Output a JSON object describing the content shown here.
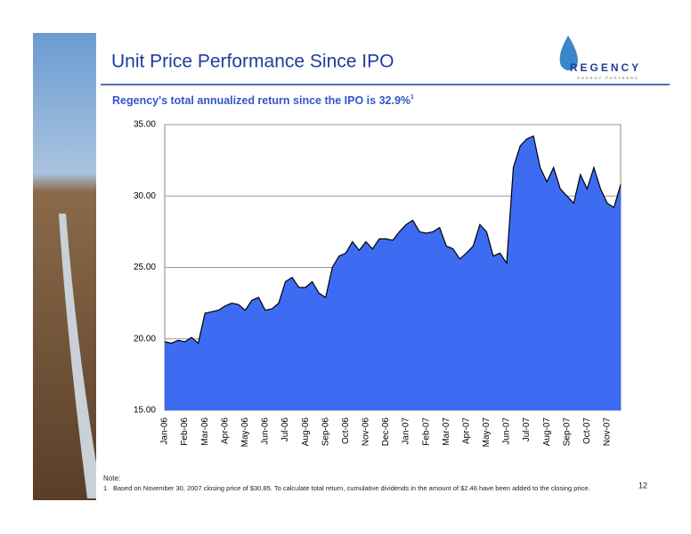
{
  "header": {
    "title": "Unit Price Performance Since IPO",
    "logo": "REGENCY",
    "logo_sub": "ENERGY PARTNERS"
  },
  "chart_data": {
    "type": "area",
    "subtitle": "Regency's total annualized return since the IPO is 32.9%",
    "subtitle_note": "1",
    "color": "#3d6cf2",
    "grid": true,
    "ylim": [
      15,
      35
    ],
    "yticks": [
      {
        "value": 15,
        "label": "15.00"
      },
      {
        "value": 20,
        "label": "20.00"
      },
      {
        "value": 25,
        "label": "25.00"
      },
      {
        "value": 30,
        "label": "30.00"
      },
      {
        "value": 35,
        "label": "35.00"
      }
    ],
    "categories": [
      "Jan-06",
      null,
      null,
      "Feb-06",
      null,
      null,
      "Mar-06",
      null,
      null,
      "Apr-06",
      null,
      null,
      "May-06",
      null,
      null,
      "Jun-06",
      null,
      null,
      "Jul-06",
      null,
      null,
      "Aug-06",
      null,
      null,
      "Sep-06",
      null,
      null,
      "Oct-06",
      null,
      null,
      "Nov-06",
      null,
      null,
      "Dec-06",
      null,
      null,
      "Jan-07",
      null,
      null,
      "Feb-07",
      null,
      null,
      "Mar-07",
      null,
      null,
      "Apr-07",
      null,
      null,
      "May-07",
      null,
      null,
      "Jun-07",
      null,
      null,
      "Jul-07",
      null,
      null,
      "Aug-07",
      null,
      null,
      "Sep-07",
      null,
      null,
      "Oct-07",
      null,
      null,
      "Nov-07",
      null,
      null
    ],
    "values": [
      19.8,
      19.7,
      19.9,
      19.8,
      20.1,
      19.7,
      21.8,
      21.9,
      22.0,
      22.3,
      22.5,
      22.4,
      22.0,
      22.7,
      22.9,
      22.0,
      22.1,
      22.5,
      24.0,
      24.3,
      23.6,
      23.6,
      24.0,
      23.2,
      22.9,
      25.0,
      25.8,
      26.0,
      26.8,
      26.2,
      26.8,
      26.3,
      27.0,
      27.0,
      26.9,
      27.5,
      28.0,
      28.3,
      27.5,
      27.4,
      27.5,
      27.8,
      26.5,
      26.3,
      25.6,
      26.0,
      26.5,
      28.0,
      27.5,
      25.8,
      26.0,
      25.3,
      32.0,
      33.5,
      34.0,
      34.2,
      32.0,
      31.0,
      32.0,
      30.5,
      30.0,
      29.5,
      31.5,
      30.5,
      32.0,
      30.5,
      29.5,
      29.2,
      30.8
    ]
  },
  "footnote": {
    "heading": "Note:",
    "number": "1",
    "text": "Based on November 30, 2007 closing price of $30.85. To calculate total return, cumulative dividends in the amount of $2.46 have been added to the closing price."
  },
  "page_number": "12"
}
